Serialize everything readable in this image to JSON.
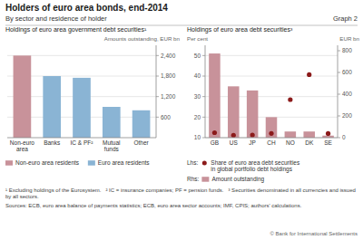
{
  "title": "Holders of euro area bonds, end-2014",
  "subtitle": "By sector and residence of holder",
  "annotations": [
    "Graph 2",
    "¹ Excluding holdings of the Eurosystem.   ² IC = insurance companies; PF = pension funds.   ³ Securities denominated in all currencies and issued by all sectors.",
    "Sources: ECB, euro area balance of payments statistics; ECB, euro area sector accounts; IMF, CPIS; authors' calculations.",
    "© Bank for International Settlements"
  ],
  "chart_data": [
    {
      "type": "bar",
      "title": "Holdings of euro area government debt securities¹",
      "ylabel": "Amounts outstanding, EUR bn",
      "categories": [
        "Non-euro\narea",
        "Banks",
        "IC & PF²",
        "Mutual\nfunds",
        "Other"
      ],
      "series": [
        {
          "name": "Non-euro area residents",
          "color": "#c8929a",
          "values": [
            2400,
            0,
            0,
            0,
            0
          ]
        },
        {
          "name": "Euro area residents",
          "color": "#8ab4d4",
          "values": [
            0,
            1800,
            1750,
            900,
            800
          ]
        }
      ],
      "stacked": true,
      "ylim": [
        0,
        2700
      ],
      "yticks": [
        600,
        {
          "value": 1200,
          "label": "1,200"
        },
        {
          "value": 1800,
          "label": "1,800"
        },
        {
          "value": 2400,
          "label": "2,400"
        }
      ],
      "grid": true,
      "legend": "bottom"
    },
    {
      "type": "bar",
      "title": "Holdings of euro area debt securities³",
      "ylabel": "Per cent",
      "y2label": "EUR bn",
      "categories": [
        "GB",
        "US",
        "JP",
        "CH",
        "NO",
        "DK",
        "SE"
      ],
      "series": [
        {
          "name": "Share of euro area debt securities\nin global portfolio debt holdings",
          "type": "scatter",
          "marker": "circle",
          "color": "#8b1a1a",
          "axis": "y2",
          "values": [
            46,
            23,
            25,
            39,
            350,
            580,
            38
          ]
        },
        {
          "name": "Amount outstanding",
          "type": "bar",
          "color": "#c8929a",
          "values": [
            51,
            35,
            33,
            20,
            13,
            13,
            11
          ]
        }
      ],
      "ylim": [
        10,
        55
      ],
      "yticks": [
        10,
        20,
        30,
        40,
        50
      ],
      "y2lim": [
        0,
        850
      ],
      "y2ticks": [
        0,
        200,
        400,
        600,
        800
      ],
      "grid": true,
      "legend": "bottom",
      "annotations": [
        "Lhs:",
        "Rhs:"
      ]
    }
  ]
}
